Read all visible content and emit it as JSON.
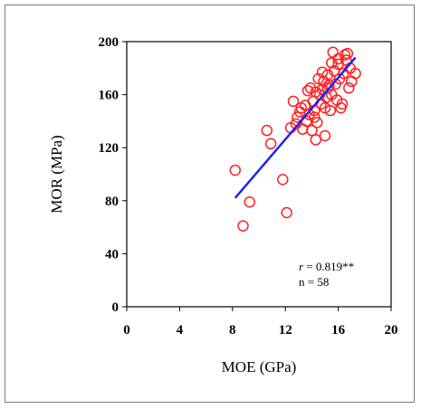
{
  "chart_data": {
    "type": "scatter",
    "xlabel": "MOE (GPa)",
    "ylabel": "MOR (MPa)",
    "xlim": [
      0,
      20
    ],
    "ylim": [
      0,
      200
    ],
    "xticks": [
      "0",
      "4",
      "8",
      "12",
      "16",
      "20"
    ],
    "yticks": [
      "0",
      "40",
      "80",
      "120",
      "160",
      "200"
    ],
    "grid": false,
    "series": [
      {
        "marker_color": "#ff2020",
        "marker": "open-circle",
        "points": [
          [
            8.2,
            103
          ],
          [
            8.8,
            61
          ],
          [
            9.3,
            79
          ],
          [
            10.6,
            133
          ],
          [
            10.9,
            123
          ],
          [
            11.8,
            96
          ],
          [
            12.1,
            71
          ],
          [
            12.4,
            135
          ],
          [
            12.6,
            155
          ],
          [
            12.9,
            143
          ],
          [
            13.1,
            147
          ],
          [
            13.3,
            134
          ],
          [
            13.5,
            152
          ],
          [
            13.6,
            140
          ],
          [
            13.7,
            163
          ],
          [
            13.8,
            145
          ],
          [
            13.9,
            165
          ],
          [
            14.0,
            133
          ],
          [
            14.1,
            155
          ],
          [
            14.2,
            148
          ],
          [
            14.3,
            126
          ],
          [
            14.3,
            162
          ],
          [
            14.4,
            139
          ],
          [
            14.5,
            172
          ],
          [
            14.6,
            160
          ],
          [
            14.7,
            153
          ],
          [
            14.8,
            164
          ],
          [
            14.9,
            170
          ],
          [
            15.0,
            129
          ],
          [
            15.0,
            150
          ],
          [
            15.1,
            158
          ],
          [
            15.2,
            175
          ],
          [
            15.3,
            167
          ],
          [
            15.4,
            148
          ],
          [
            15.5,
            160
          ],
          [
            15.6,
            192
          ],
          [
            15.7,
            178
          ],
          [
            15.8,
            168
          ],
          [
            15.9,
            156
          ],
          [
            16.0,
            183
          ],
          [
            16.1,
            172
          ],
          [
            16.2,
            150
          ],
          [
            16.3,
            153
          ],
          [
            16.4,
            176
          ],
          [
            16.5,
            190
          ],
          [
            16.6,
            186
          ],
          [
            16.7,
            191
          ],
          [
            16.8,
            165
          ],
          [
            16.9,
            180
          ],
          [
            17.0,
            170
          ],
          [
            17.3,
            176
          ],
          [
            14.2,
            143
          ],
          [
            13.2,
            150
          ],
          [
            15.5,
            184
          ],
          [
            16.0,
            187
          ],
          [
            14.8,
            177
          ],
          [
            12.8,
            138
          ],
          [
            15.2,
            165
          ]
        ]
      }
    ],
    "fit_line": {
      "color": "#2020ff",
      "x": [
        8.2,
        17.3
      ],
      "y": [
        82,
        188
      ]
    },
    "annotation": {
      "r_symbol": "r",
      "r_value": " = 0.819**",
      "n_text": "n = 58",
      "position": "bottom-right"
    }
  }
}
